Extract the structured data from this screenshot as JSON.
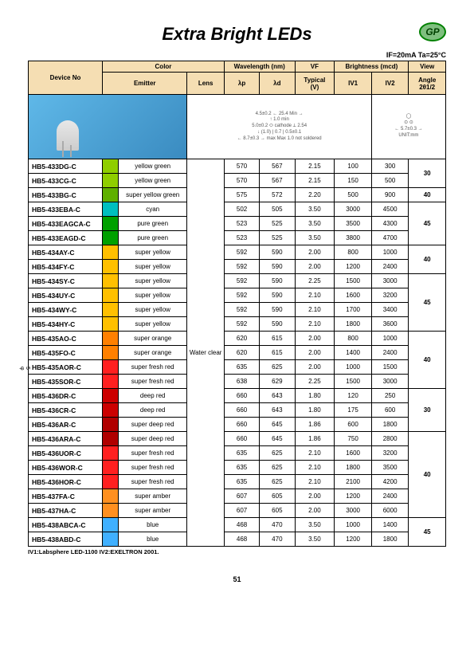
{
  "title": "Extra Bright LEDs",
  "logo": "GP",
  "conditions": "IF=20mA  Ta=25°C",
  "headers": {
    "device": "Device No",
    "color": "Color",
    "emitter": "Emitter",
    "lens": "Lens",
    "wavelength": "Wavelength (nm)",
    "lp": "λp",
    "ld": "λd",
    "vf": "VF",
    "typical": "Typical",
    "v": "(V)",
    "brightness": "Brightness (mcd)",
    "iv1": "IV1",
    "iv2": "IV2",
    "view": "View",
    "angle": "Angle",
    "ang": "2θ1/2"
  },
  "diagram_labels": {
    "a": "4.5±0.2",
    "b": "25.4 Min",
    "c": "1.0 min",
    "d": "cathode",
    "e": "5.0±0.2",
    "f": "8.7±0.3",
    "g": "(1.0)",
    "h": "0.7",
    "i": "max Max 1.0 not soldered",
    "j": "0.5±0.1",
    "k": "2.54",
    "side": "5.7±0.3",
    "unit": "UNIT:mm"
  },
  "lens": "Water clear",
  "footer": "IV1:Labsphere LED-1100    IV2:EXELTRON 2001.",
  "page": "51",
  "colors": {
    "yellow-green": "#8fce00",
    "super-yellow-green": "#5fb000",
    "cyan": "#00bfbf",
    "pure-green": "#00a000",
    "super-yellow": "#ffc000",
    "super-orange": "#ff8000",
    "super-fresh-red": "#ff2020",
    "deep-red": "#cc0000",
    "super-deep-red": "#b00000",
    "super-amber": "#ff9020",
    "blue": "#40b0ff"
  },
  "angle_groups": [
    {
      "angle": "30",
      "rows": 2
    },
    {
      "angle": "40",
      "rows": 1
    },
    {
      "angle": "45",
      "rows": 3
    },
    {
      "angle": "40",
      "rows": 2
    },
    {
      "angle": "45",
      "rows": 4
    },
    {
      "angle": "40",
      "rows": 4
    },
    {
      "angle": "30",
      "rows": 3
    },
    {
      "angle": "40",
      "rows": 6
    },
    {
      "angle": "45",
      "rows": 2
    }
  ],
  "rows": [
    {
      "d": "HB5-433DG-C",
      "c": "yellow-green",
      "e": "yellow green",
      "lp": "570",
      "ld": "567",
      "vf": "2.15",
      "i1": "100",
      "i2": "300"
    },
    {
      "d": "HB5-433CG-C",
      "c": "yellow-green",
      "e": "yellow green",
      "lp": "570",
      "ld": "567",
      "vf": "2.15",
      "i1": "150",
      "i2": "500"
    },
    {
      "d": "HB5-433BG-C",
      "c": "super-yellow-green",
      "e": "super yellow green",
      "lp": "575",
      "ld": "572",
      "vf": "2.20",
      "i1": "500",
      "i2": "900"
    },
    {
      "d": "HB5-433EBA-C",
      "c": "cyan",
      "e": "cyan",
      "lp": "502",
      "ld": "505",
      "vf": "3.50",
      "i1": "3000",
      "i2": "4500"
    },
    {
      "d": "HB5-433EAGCA-C",
      "c": "pure-green",
      "e": "pure green",
      "lp": "523",
      "ld": "525",
      "vf": "3.50",
      "i1": "3500",
      "i2": "4300"
    },
    {
      "d": "HB5-433EAGD-C",
      "c": "pure-green",
      "e": "pure green",
      "lp": "523",
      "ld": "525",
      "vf": "3.50",
      "i1": "3800",
      "i2": "4700"
    },
    {
      "d": "HB5-434AY-C",
      "c": "super-yellow",
      "e": "super yellow",
      "lp": "592",
      "ld": "590",
      "vf": "2.00",
      "i1": "800",
      "i2": "1000"
    },
    {
      "d": "HB5-434FY-C",
      "c": "super-yellow",
      "e": "super yellow",
      "lp": "592",
      "ld": "590",
      "vf": "2.00",
      "i1": "1200",
      "i2": "2400"
    },
    {
      "d": "HB5-434SY-C",
      "c": "super-yellow",
      "e": "super yellow",
      "lp": "592",
      "ld": "590",
      "vf": "2.25",
      "i1": "1500",
      "i2": "3000"
    },
    {
      "d": "HB5-434UY-C",
      "c": "super-yellow",
      "e": "super yellow",
      "lp": "592",
      "ld": "590",
      "vf": "2.10",
      "i1": "1600",
      "i2": "3200"
    },
    {
      "d": "HB5-434WY-C",
      "c": "super-yellow",
      "e": "super yellow",
      "lp": "592",
      "ld": "590",
      "vf": "2.10",
      "i1": "1700",
      "i2": "3400"
    },
    {
      "d": "HB5-434HY-C",
      "c": "super-yellow",
      "e": "super yellow",
      "lp": "592",
      "ld": "590",
      "vf": "2.10",
      "i1": "1800",
      "i2": "3600"
    },
    {
      "d": "HB5-435AO-C",
      "c": "super-orange",
      "e": "super orange",
      "lp": "620",
      "ld": "615",
      "vf": "2.00",
      "i1": "800",
      "i2": "1000"
    },
    {
      "d": "HB5-435FO-C",
      "c": "super-orange",
      "e": "super orange",
      "lp": "620",
      "ld": "615",
      "vf": "2.00",
      "i1": "1400",
      "i2": "2400"
    },
    {
      "d": "HB5-435AOR-C",
      "c": "super-fresh-red",
      "e": "super fresh red",
      "lp": "635",
      "ld": "625",
      "vf": "2.00",
      "i1": "1000",
      "i2": "1500"
    },
    {
      "d": "HB5-435SOR-C",
      "c": "super-fresh-red",
      "e": "super fresh red",
      "lp": "638",
      "ld": "629",
      "vf": "2.25",
      "i1": "1500",
      "i2": "3000"
    },
    {
      "d": "HB5-436DR-C",
      "c": "deep-red",
      "e": "deep red",
      "lp": "660",
      "ld": "643",
      "vf": "1.80",
      "i1": "120",
      "i2": "250"
    },
    {
      "d": "HB5-436CR-C",
      "c": "deep-red",
      "e": "deep red",
      "lp": "660",
      "ld": "643",
      "vf": "1.80",
      "i1": "175",
      "i2": "600"
    },
    {
      "d": "HB5-436AR-C",
      "c": "super-deep-red",
      "e": "super deep red",
      "lp": "660",
      "ld": "645",
      "vf": "1.86",
      "i1": "600",
      "i2": "1800"
    },
    {
      "d": "HB5-436ARA-C",
      "c": "super-deep-red",
      "e": "super deep red",
      "lp": "660",
      "ld": "645",
      "vf": "1.86",
      "i1": "750",
      "i2": "2800"
    },
    {
      "d": "HB5-436UOR-C",
      "c": "super-fresh-red",
      "e": "super fresh red",
      "lp": "635",
      "ld": "625",
      "vf": "2.10",
      "i1": "1600",
      "i2": "3200"
    },
    {
      "d": "HB5-436WOR-C",
      "c": "super-fresh-red",
      "e": "super fresh red",
      "lp": "635",
      "ld": "625",
      "vf": "2.10",
      "i1": "1800",
      "i2": "3500"
    },
    {
      "d": "HB5-436HOR-C",
      "c": "super-fresh-red",
      "e": "super fresh red",
      "lp": "635",
      "ld": "625",
      "vf": "2.10",
      "i1": "2100",
      "i2": "4200"
    },
    {
      "d": "HB5-437FA-C",
      "c": "super-amber",
      "e": "super amber",
      "lp": "607",
      "ld": "605",
      "vf": "2.00",
      "i1": "1200",
      "i2": "2400"
    },
    {
      "d": "HB5-437HA-C",
      "c": "super-amber",
      "e": "super amber",
      "lp": "607",
      "ld": "605",
      "vf": "2.00",
      "i1": "3000",
      "i2": "6000"
    },
    {
      "d": "HB5-438ABCA-C",
      "c": "blue",
      "e": "blue",
      "lp": "468",
      "ld": "470",
      "vf": "3.50",
      "i1": "1000",
      "i2": "1400"
    },
    {
      "d": "HB5-438ABD-C",
      "c": "blue",
      "e": "blue",
      "lp": "468",
      "ld": "470",
      "vf": "3.50",
      "i1": "1200",
      "i2": "1800"
    }
  ]
}
